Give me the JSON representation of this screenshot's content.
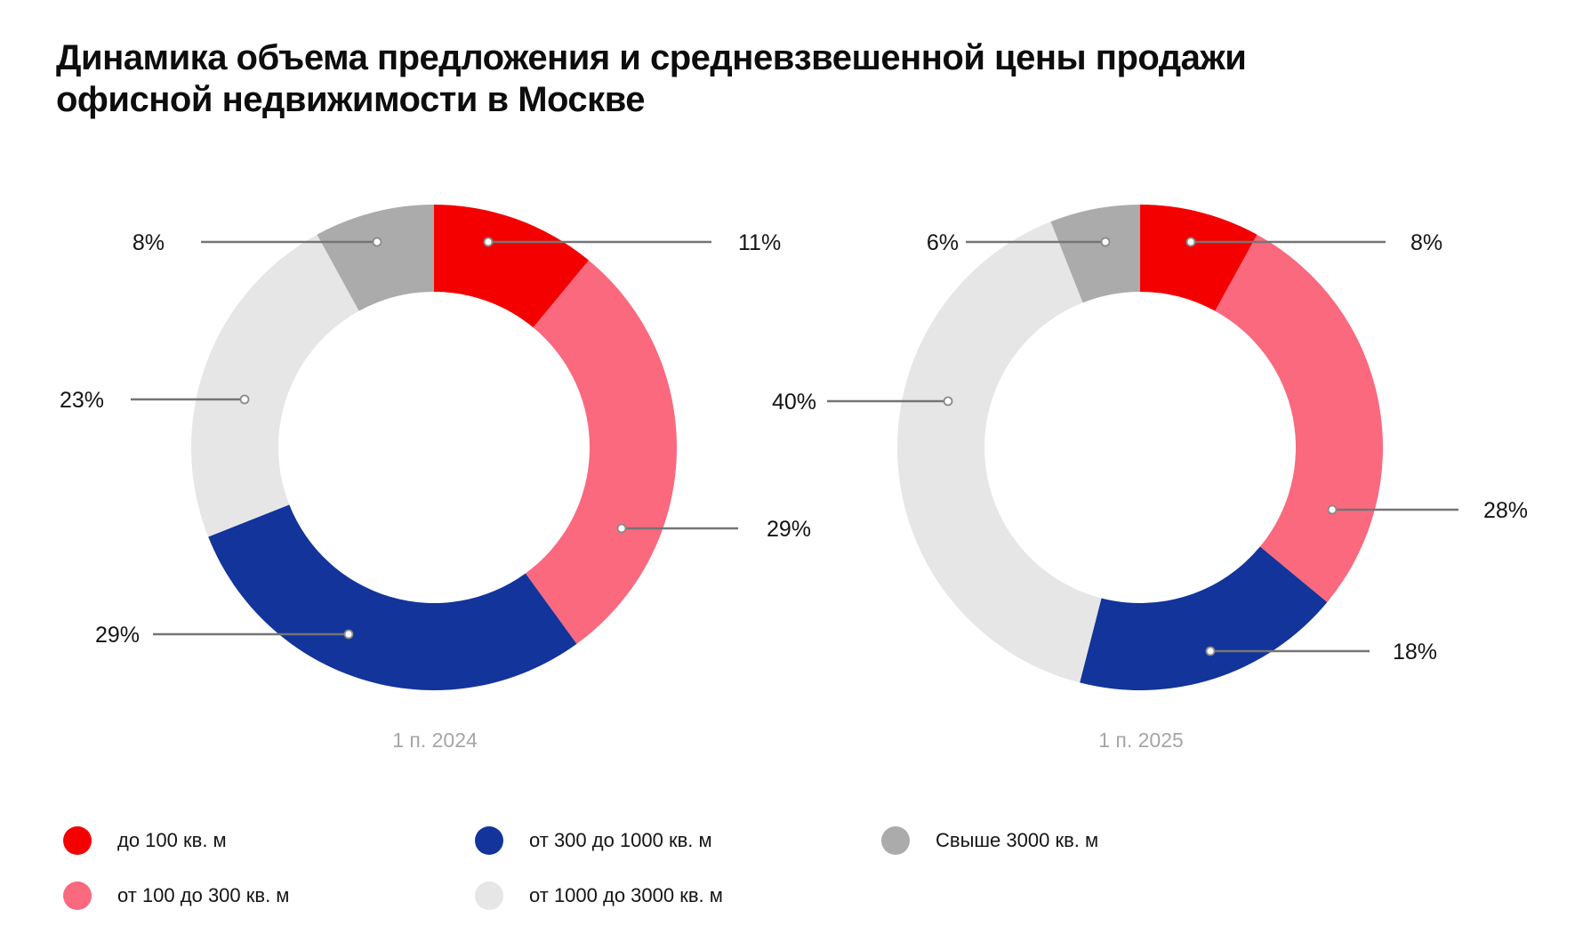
{
  "title": {
    "line1": "Динамика объема предложения и средневзвешенной цены продажи",
    "line2": "офисной недвижимости в Москве"
  },
  "colors": {
    "red": "#F40000",
    "pink": "#FA697E",
    "blue": "#12349B",
    "light_gray": "#E6E6E6",
    "gray": "#ABABAB",
    "leader_line": "#757575",
    "marker_stroke": "#8A8A8A",
    "caption_text": "#A6A6A6",
    "label_text": "#141414",
    "title_text": "#0D0D0D"
  },
  "legend": {
    "items": [
      {
        "label": "до 100 кв. м",
        "color_key": "red"
      },
      {
        "label": "от 100 до 300 кв. м",
        "color_key": "pink"
      },
      {
        "label": "от 300 до 1000 кв. м",
        "color_key": "blue"
      },
      {
        "label": "от 1000 до 3000 кв. м",
        "color_key": "light_gray"
      },
      {
        "label": "Свыше 3000 кв. м",
        "color_key": "gray"
      }
    ]
  },
  "chart_data": {
    "type": "pie",
    "style": "donut",
    "unit": "%",
    "title": "Динамика объема предложения и средневзвешенной цены продажи офисной недвижимости в Москве",
    "categories": [
      "до 100 кв. м",
      "от 100 до 300 кв. м",
      "от 300 до 1000 кв. м",
      "от 1000 до 3000 кв. м",
      "Свыше 3000 кв. м"
    ],
    "category_color_keys": [
      "red",
      "pink",
      "blue",
      "light_gray",
      "gray"
    ],
    "series": [
      {
        "name": "1 п. 2024",
        "values": [
          11,
          29,
          29,
          23,
          8
        ]
      },
      {
        "name": "1 п. 2025",
        "values": [
          8,
          28,
          18,
          40,
          6
        ]
      }
    ],
    "legend_position": "bottom",
    "labels": "percent values with horizontal leader lines and circular markers"
  }
}
